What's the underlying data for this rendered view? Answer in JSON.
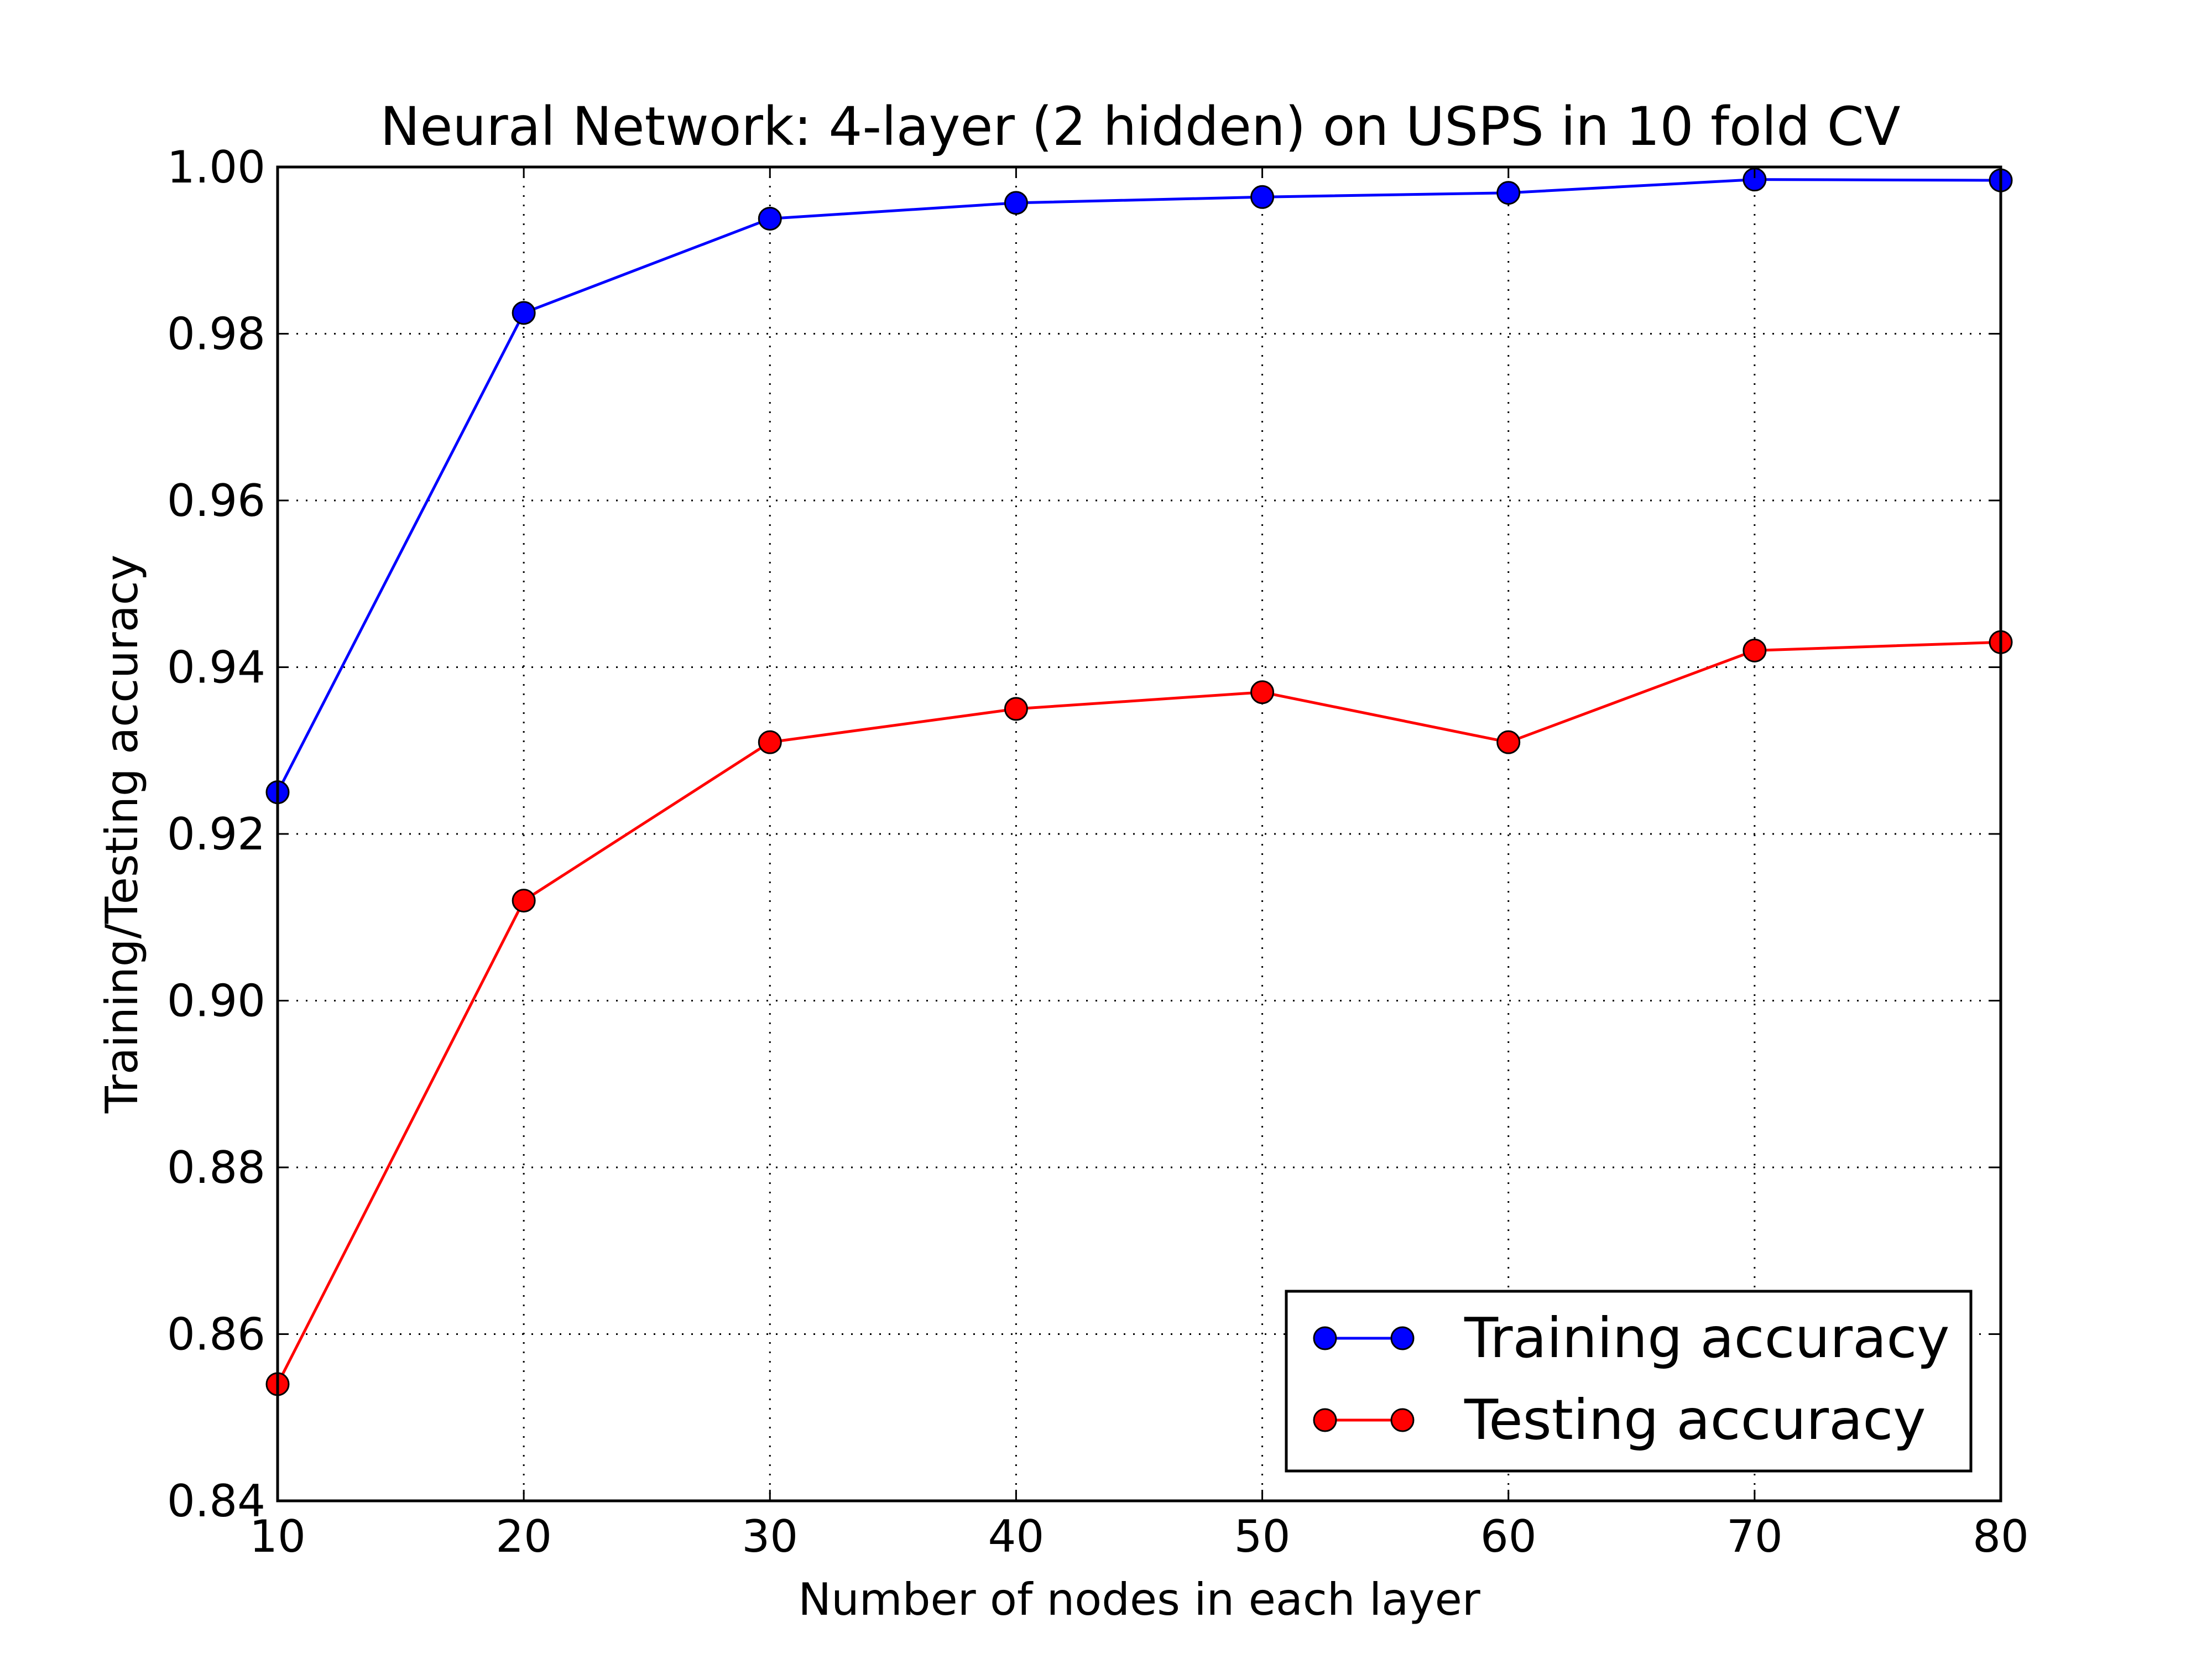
{
  "chart_data": {
    "type": "line",
    "title": "Neural Network: 4-layer (2 hidden) on USPS in 10 fold CV",
    "xlabel": "Number of nodes in each layer",
    "ylabel": "Training/Testing accuracy",
    "xlim": [
      10,
      80
    ],
    "ylim": [
      0.84,
      1.0
    ],
    "x": [
      10,
      20,
      30,
      40,
      50,
      60,
      70,
      80
    ],
    "x_ticks": [
      "10",
      "20",
      "30",
      "40",
      "50",
      "60",
      "70",
      "80"
    ],
    "y_ticks": [
      "0.84",
      "0.86",
      "0.88",
      "0.90",
      "0.92",
      "0.94",
      "0.96",
      "0.98",
      "1.00"
    ],
    "y_tick_values": [
      0.84,
      0.86,
      0.88,
      0.9,
      0.92,
      0.94,
      0.96,
      0.98,
      1.0
    ],
    "grid": true,
    "legend_position": "lower-right",
    "series": [
      {
        "name": "Training accuracy",
        "color": "#0000ff",
        "marker": "circle",
        "values": [
          0.925,
          0.9825,
          0.9938,
          0.9957,
          0.9964,
          0.9969,
          0.9985,
          0.9984
        ]
      },
      {
        "name": "Testing accuracy",
        "color": "#ff0000",
        "marker": "circle",
        "values": [
          0.854,
          0.912,
          0.931,
          0.935,
          0.937,
          0.931,
          0.942,
          0.943
        ]
      }
    ]
  }
}
